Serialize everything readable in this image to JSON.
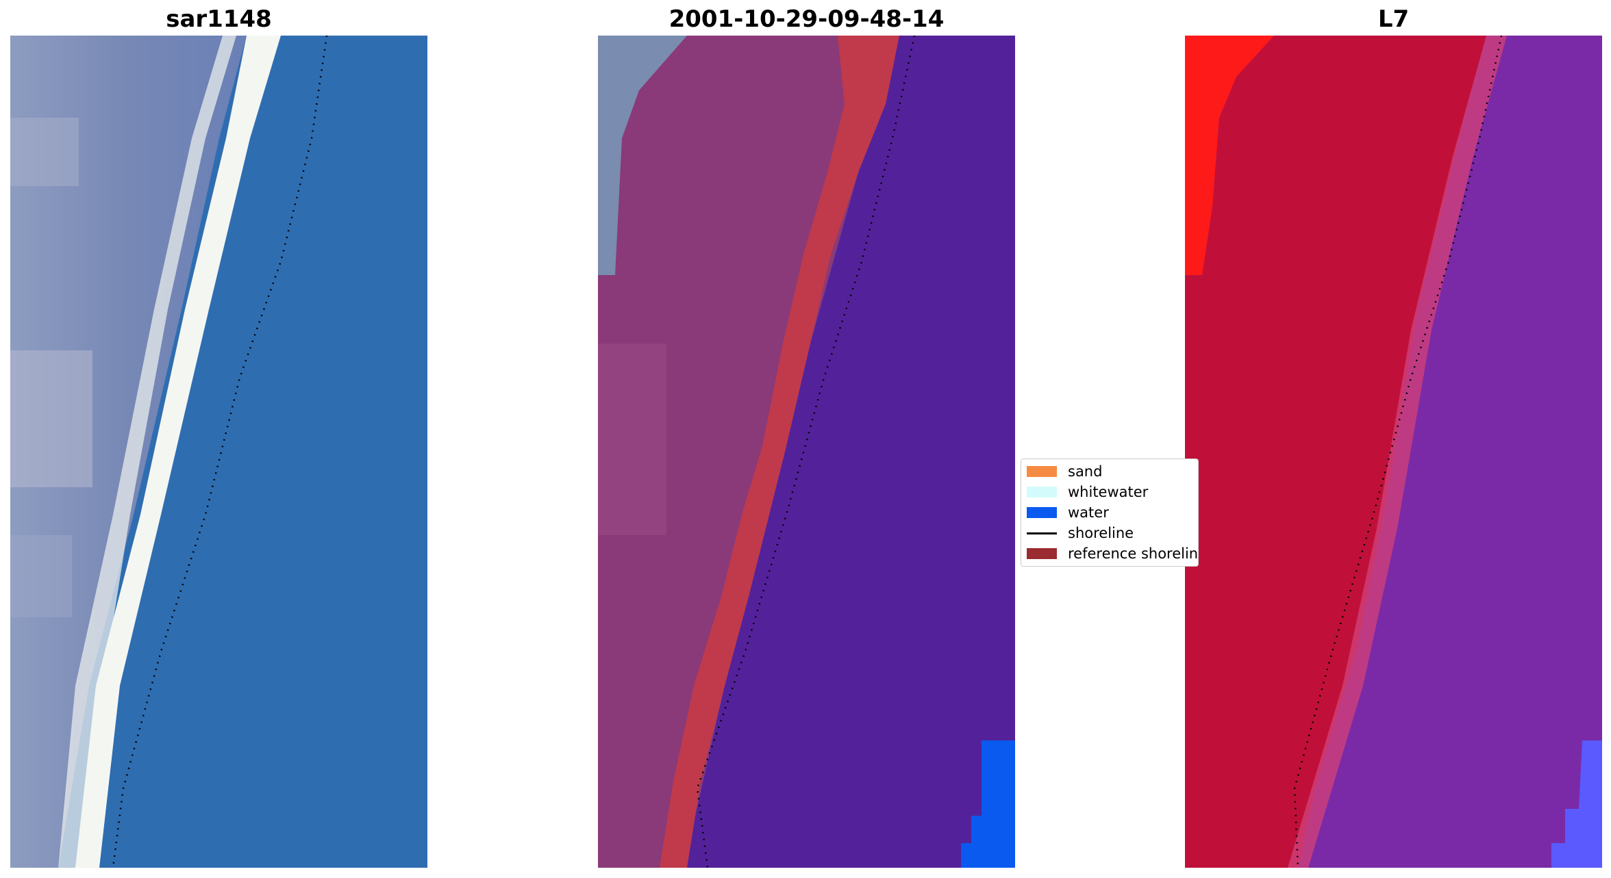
{
  "panels": [
    {
      "title": "sar1148"
    },
    {
      "title": "2001-10-29-09-48-14"
    },
    {
      "title": "L7"
    }
  ],
  "legend": {
    "placement": "center",
    "items": [
      {
        "label": "sand",
        "color": "#f58b42",
        "kind": "swatch"
      },
      {
        "label": "whitewater",
        "color": "#d4fbfb",
        "kind": "swatch"
      },
      {
        "label": "water",
        "color": "#0a5af0",
        "kind": "swatch"
      },
      {
        "label": "shoreline",
        "color": "#000000",
        "kind": "line"
      },
      {
        "label": "reference shoreline",
        "color": "#9a2b30",
        "kind": "swatch"
      }
    ]
  },
  "colors": {
    "rgb_land": "#7f8fb5",
    "rgb_whitewater": "#f4f6f2",
    "rgb_water": "#2f6db1",
    "class_land": "#8a3a78",
    "class_reference_band": "#c03a4c",
    "class_water": "#53229a",
    "class_water_pixels": "#0a5af0",
    "class_topleft": "#7a8cb0",
    "index_land": "#c0103a",
    "index_high": "#ff1a1a",
    "index_water": "#7a2aa6",
    "index_water_pixels": "#5a5aff"
  }
}
